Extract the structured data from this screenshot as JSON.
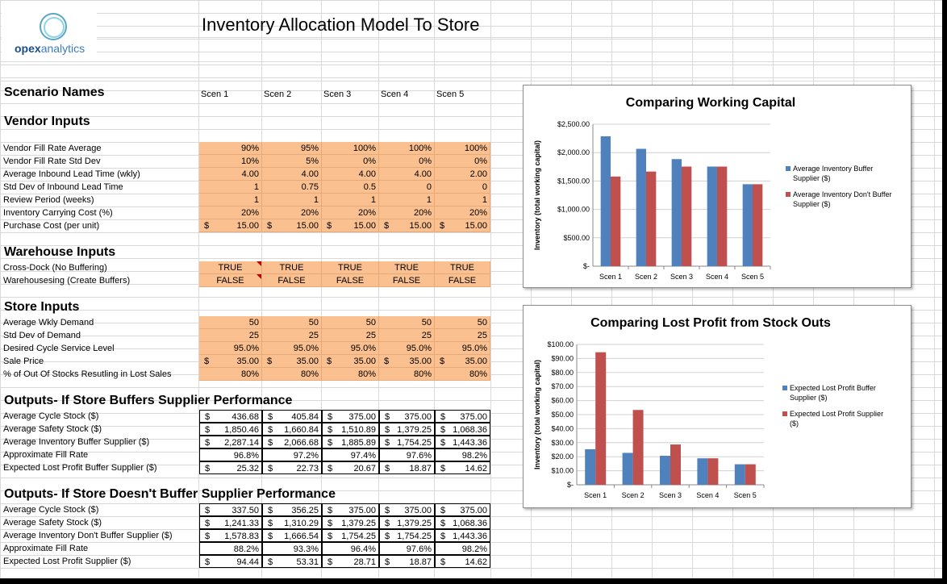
{
  "title": "Inventory Allocation Model To Store",
  "logo": {
    "bold": "opex",
    "light": "analytics"
  },
  "scenario_names_label": "Scenario Names",
  "scenarios": [
    "Scen 1",
    "Scen 2",
    "Scen 3",
    "Scen 4",
    "Scen 5"
  ],
  "vendor": {
    "heading": "Vendor Inputs",
    "rows": [
      {
        "label": "Vendor Fill Rate Average",
        "values": [
          "90%",
          "95%",
          "100%",
          "100%",
          "100%"
        ]
      },
      {
        "label": "Vendor Fill Rate Std Dev",
        "values": [
          "10%",
          "5%",
          "0%",
          "0%",
          "0%"
        ]
      },
      {
        "label": "Average Inbound Lead Time (wkly)",
        "values": [
          "4.00",
          "4.00",
          "4.00",
          "4.00",
          "2.00"
        ]
      },
      {
        "label": "Std Dev of Inbound Lead Time",
        "values": [
          "1",
          "0.75",
          "0.5",
          "0",
          "0"
        ]
      },
      {
        "label": "Review Period (weeks)",
        "values": [
          "1",
          "1",
          "1",
          "1",
          "1"
        ]
      },
      {
        "label": "Inventory Carrying Cost (%)",
        "values": [
          "20%",
          "20%",
          "20%",
          "20%",
          "20%"
        ]
      },
      {
        "label": "Purchase Cost (per unit)",
        "values": [
          "15.00",
          "15.00",
          "15.00",
          "15.00",
          "15.00"
        ],
        "currency": "$"
      }
    ]
  },
  "warehouse": {
    "heading": "Warehouse Inputs",
    "rows": [
      {
        "label": "Cross-Dock (No Buffering)",
        "values": [
          "TRUE",
          "TRUE",
          "TRUE",
          "TRUE",
          "TRUE"
        ]
      },
      {
        "label": "Warehousesing (Create Buffers)",
        "values": [
          "FALSE",
          "FALSE",
          "FALSE",
          "FALSE",
          "FALSE"
        ]
      }
    ]
  },
  "store": {
    "heading": "Store Inputs",
    "rows": [
      {
        "label": "Average Wkly Demand",
        "values": [
          "50",
          "50",
          "50",
          "50",
          "50"
        ]
      },
      {
        "label": "Std Dev of Demand",
        "values": [
          "25",
          "25",
          "25",
          "25",
          "25"
        ]
      },
      {
        "label": "Desired Cycle Service Level",
        "values": [
          "95.0%",
          "95.0%",
          "95.0%",
          "95.0%",
          "95.0%"
        ]
      },
      {
        "label": "Sale Price",
        "values": [
          "35.00",
          "35.00",
          "35.00",
          "35.00",
          "35.00"
        ],
        "currency": "$"
      },
      {
        "label": "% of Out Of Stocks Resutling in Lost Sales",
        "values": [
          "80%",
          "80%",
          "80%",
          "80%",
          "80%"
        ]
      }
    ]
  },
  "out_buffer": {
    "heading": "Outputs- If Store Buffers Supplier Performance",
    "rows": [
      {
        "label": "Average Cycle Stock ($)",
        "values": [
          "436.68",
          "405.84",
          "375.00",
          "375.00",
          "375.00"
        ],
        "currency": "$"
      },
      {
        "label": "Average Safety Stock ($)",
        "values": [
          "1,850.46",
          "1,660.84",
          "1,510.89",
          "1,379.25",
          "1,068.36"
        ],
        "currency": "$"
      },
      {
        "label": "Average Inventory Buffer Supplier ($)",
        "values": [
          "2,287.14",
          "2,066.68",
          "1,885.89",
          "1,754.25",
          "1,443.36"
        ],
        "currency": "$"
      },
      {
        "label": "Approximate Fill Rate",
        "values": [
          "96.8%",
          "97.2%",
          "97.4%",
          "97.6%",
          "98.2%"
        ]
      },
      {
        "label": "Expected Lost Profit Buffer Supplier ($)",
        "values": [
          "25.32",
          "22.73",
          "20.67",
          "18.87",
          "14.62"
        ],
        "currency": "$"
      }
    ]
  },
  "out_nobuffer": {
    "heading": "Outputs- If Store Doesn't Buffer Supplier Performance",
    "rows": [
      {
        "label": "Average Cycle Stock ($)",
        "values": [
          "337.50",
          "356.25",
          "375.00",
          "375.00",
          "375.00"
        ],
        "currency": "$"
      },
      {
        "label": "Average Safety Stock ($)",
        "values": [
          "1,241.33",
          "1,310.29",
          "1,379.25",
          "1,379.25",
          "1,068.36"
        ],
        "currency": "$"
      },
      {
        "label": "Average Inventory Don't Buffer Supplier ($)",
        "values": [
          "1,578.83",
          "1,666.54",
          "1,754.25",
          "1,754.25",
          "1,443.36"
        ],
        "currency": "$"
      },
      {
        "label": "Approximate Fill Rate",
        "values": [
          "88.2%",
          "93.3%",
          "96.4%",
          "97.6%",
          "98.2%"
        ]
      },
      {
        "label": "Expected Lost Profit Supplier ($)",
        "values": [
          "94.44",
          "53.31",
          "28.71",
          "18.87",
          "14.62"
        ],
        "currency": "$"
      }
    ]
  },
  "colors": {
    "input_fill": "#fac090",
    "series1": "#4f81bd",
    "series2": "#c0504d"
  },
  "chart_data": [
    {
      "type": "bar",
      "title": "Comparing Working Capital",
      "ylabel": "Inventory (total working capital)",
      "categories": [
        "Scen 1",
        "Scen 2",
        "Scen 3",
        "Scen 4",
        "Scen 5"
      ],
      "yticks": [
        "$-",
        "$500.00",
        "$1,000.00",
        "$1,500.00",
        "$2,000.00",
        "$2,500.00"
      ],
      "ylim": [
        0,
        2500
      ],
      "grid": true,
      "legend": "right",
      "series": [
        {
          "name": "Average Inventory Buffer Supplier ($)",
          "values": [
            2287.14,
            2066.68,
            1885.89,
            1754.25,
            1443.36
          ]
        },
        {
          "name": "Average Inventory Don't Buffer Supplier ($)",
          "values": [
            1578.83,
            1666.54,
            1754.25,
            1754.25,
            1443.36
          ]
        }
      ]
    },
    {
      "type": "bar",
      "title": "Comparing Lost Profit from Stock Outs",
      "ylabel": "Inventory (total working capital)",
      "categories": [
        "Scen 1",
        "Scen 2",
        "Scen 3",
        "Scen 4",
        "Scen 5"
      ],
      "yticks": [
        "$-",
        "$10.00",
        "$20.00",
        "$30.00",
        "$40.00",
        "$50.00",
        "$60.00",
        "$70.00",
        "$80.00",
        "$90.00",
        "$100.00"
      ],
      "ylim": [
        0,
        100
      ],
      "grid": true,
      "legend": "right",
      "series": [
        {
          "name": "Expected Lost Profit Buffer Supplier ($)",
          "values": [
            25.32,
            22.73,
            20.67,
            18.87,
            14.62
          ]
        },
        {
          "name": "Expected Lost Profit Supplier ($)",
          "values": [
            94.44,
            53.31,
            28.71,
            18.87,
            14.62
          ]
        }
      ]
    }
  ]
}
